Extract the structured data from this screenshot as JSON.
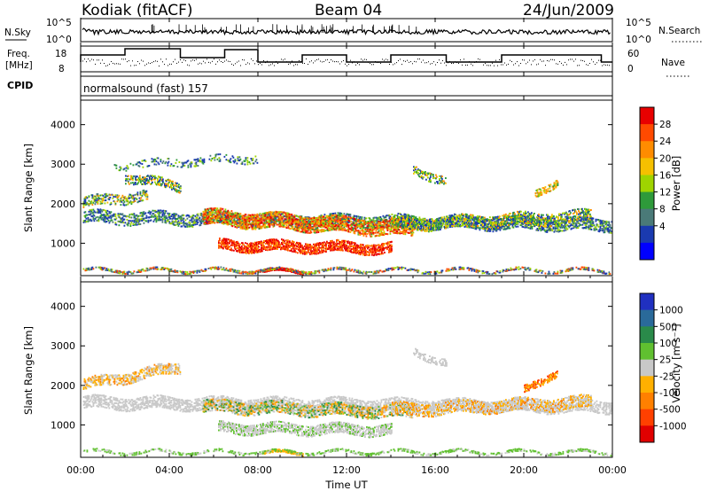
{
  "header": {
    "station": "Kodiak (fitACF)",
    "beam": "Beam 04",
    "date": "24/Jun/2009",
    "cpid_label": "CPID",
    "program": "normalsound (fast) 157"
  },
  "noise_panel": {
    "left_label": "N.Sky",
    "right_label": "N.Search",
    "ticks": [
      "10^5",
      "10^0"
    ]
  },
  "freq_panel": {
    "left_label_1": "Freq.",
    "left_label_2": "[MHz]",
    "right_label": "Nave",
    "left_ticks": [
      "18",
      "8"
    ],
    "right_ticks": [
      "60",
      "0"
    ]
  },
  "chart_data": [
    {
      "type": "heatmap",
      "name": "power",
      "ylabel": "Slant Range [km]",
      "xlabel": "",
      "ylim": [
        180,
        4620
      ],
      "y_ticks": [
        "4000",
        "3000",
        "2000",
        "1000"
      ],
      "colorbar": {
        "label": "Power [dB]",
        "ticks": [
          "28",
          "24",
          "20",
          "16",
          "12",
          "8",
          "4"
        ],
        "colors": [
          "#e80000",
          "#ff4a00",
          "#ff8c00",
          "#f5c000",
          "#9fd400",
          "#2e9a3a",
          "#4a7a78",
          "#1a3ab0",
          "#0000ff"
        ]
      }
    },
    {
      "type": "heatmap",
      "name": "velocity",
      "ylabel": "Slant Range [km]",
      "xlabel": "Time UT",
      "ylim": [
        180,
        4620
      ],
      "y_ticks": [
        "4000",
        "3000",
        "2000",
        "1000"
      ],
      "x_ticks": [
        "00:00",
        "04:00",
        "08:00",
        "12:00",
        "16:00",
        "20:00",
        "00:00"
      ],
      "colorbar": {
        "label": "Velocity [m s⁻¹]",
        "ticks": [
          "1000",
          "500",
          "100",
          "25",
          "-25",
          "-100",
          "-500",
          "-1000"
        ],
        "colors": [
          "#2030c0",
          "#2a6a9a",
          "#2a8a4a",
          "#60c030",
          "#c8c8c8",
          "#ffb000",
          "#ff8000",
          "#ff4000",
          "#e00000"
        ]
      }
    }
  ]
}
